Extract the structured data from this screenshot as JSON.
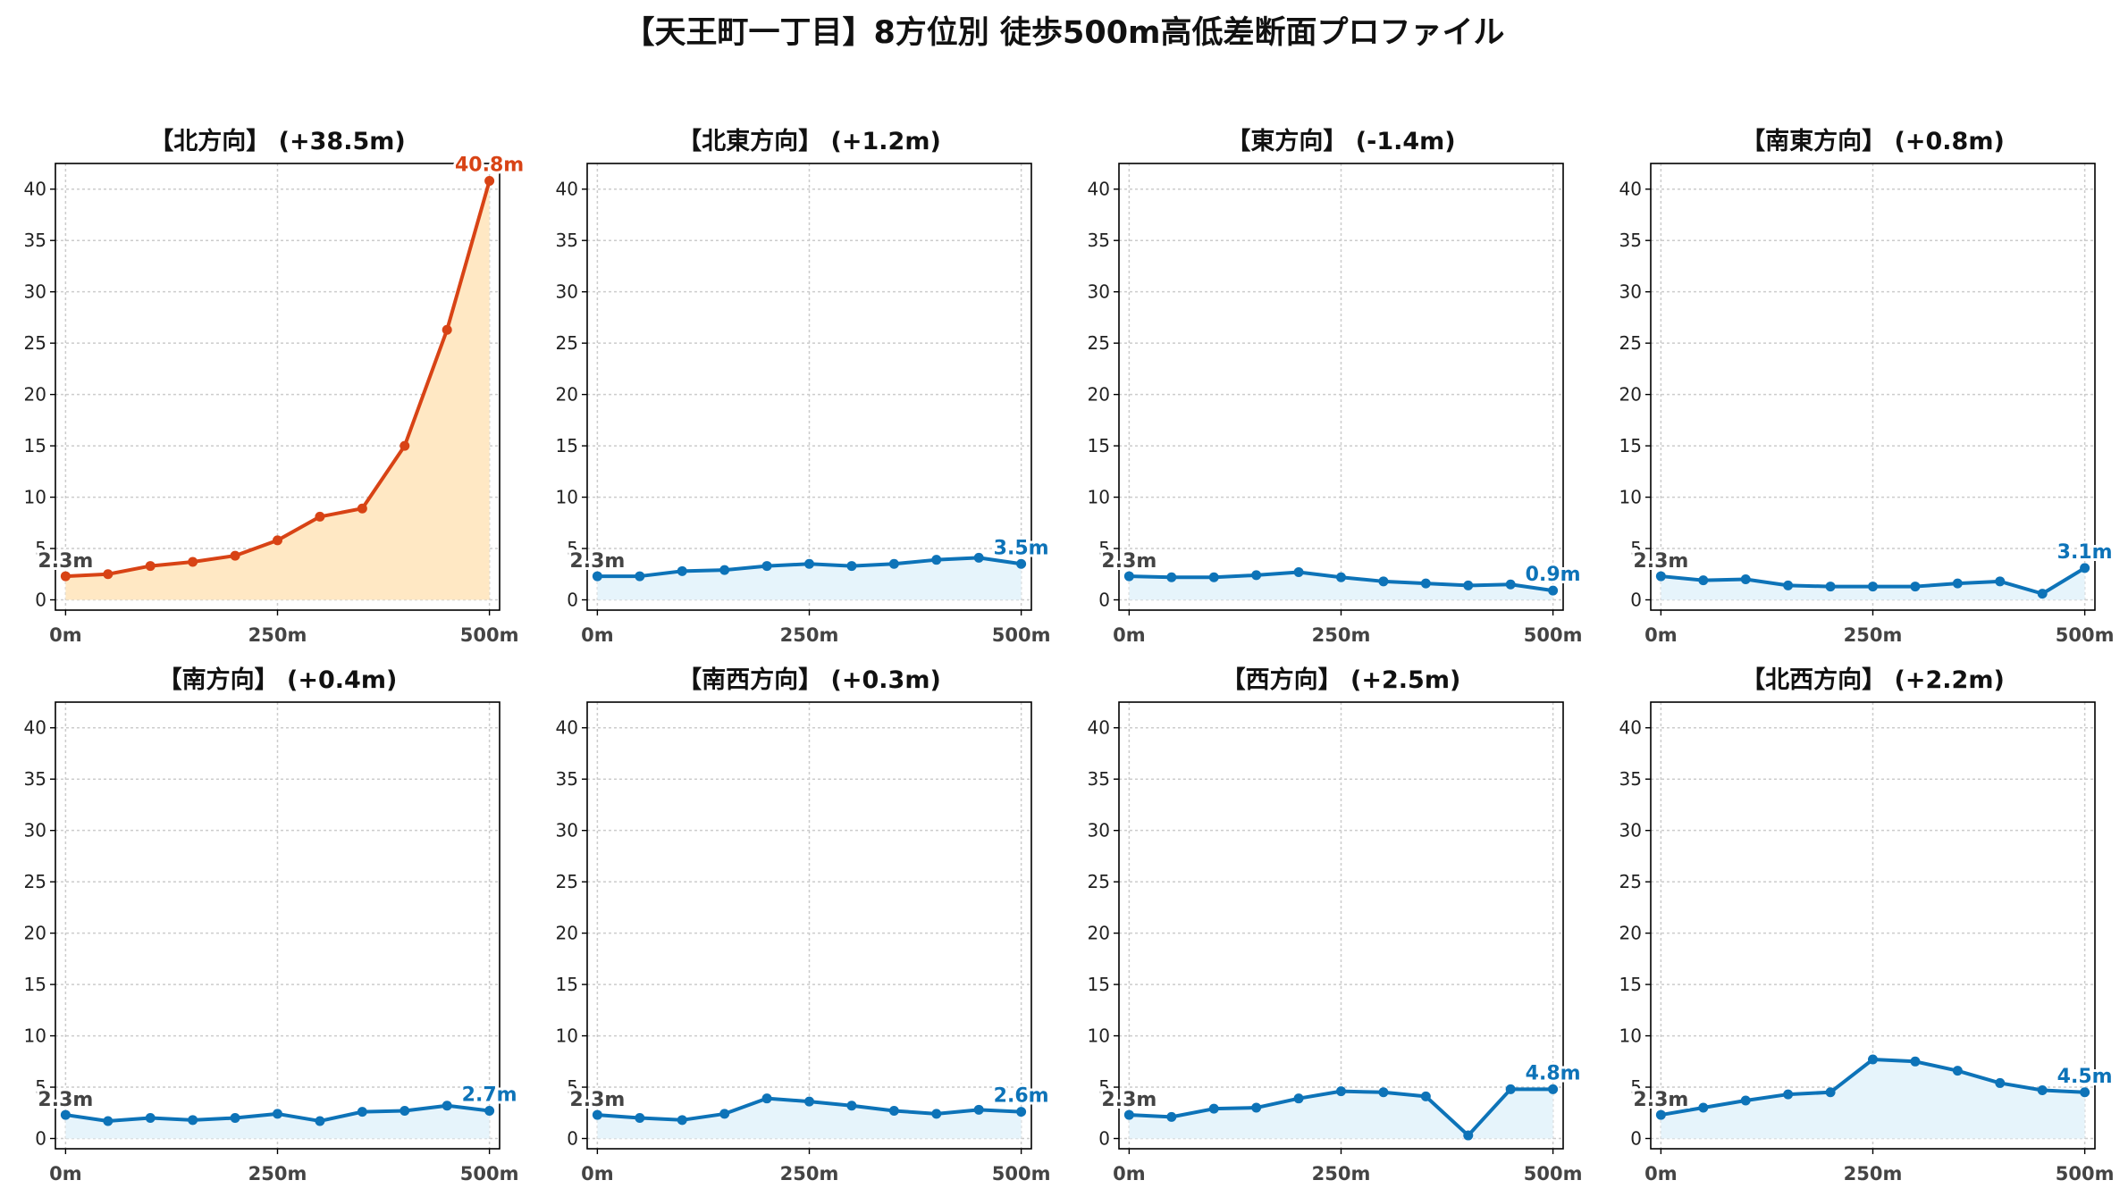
{
  "title": "【天王町一丁目】8方位別 徒歩500m高低差断面プロファイル",
  "colors": {
    "highlight_line": "#d84315",
    "highlight_fill": "#ffe8c4",
    "normal_line": "#0d73b8",
    "normal_fill": "#e6f4fb",
    "grid": "#cccccc"
  },
  "chart_data": [
    {
      "type": "area",
      "title": "【北方向】 (+38.5m)",
      "style": "highlight",
      "x": [
        0,
        50,
        100,
        150,
        200,
        250,
        300,
        350,
        400,
        450,
        500
      ],
      "values": [
        2.3,
        2.5,
        3.3,
        3.7,
        4.3,
        5.8,
        8.1,
        8.9,
        15.0,
        26.3,
        40.8
      ],
      "start_label": "2.3m",
      "end_label": "40.8m",
      "xticks": [
        "0m",
        "250m",
        "500m"
      ],
      "yticks": [
        "0",
        "5",
        "10",
        "15",
        "20",
        "25",
        "30",
        "35",
        "40"
      ],
      "ylim": [
        -1,
        42.5
      ],
      "xlim": [
        -12,
        512
      ],
      "grid": true
    },
    {
      "type": "area",
      "title": "【北東方向】 (+1.2m)",
      "style": "normal",
      "x": [
        0,
        50,
        100,
        150,
        200,
        250,
        300,
        350,
        400,
        450,
        500
      ],
      "values": [
        2.3,
        2.3,
        2.8,
        2.9,
        3.3,
        3.5,
        3.3,
        3.5,
        3.9,
        4.1,
        3.5
      ],
      "start_label": "2.3m",
      "end_label": "3.5m",
      "xticks": [
        "0m",
        "250m",
        "500m"
      ],
      "yticks": [
        "0",
        "5",
        "10",
        "15",
        "20",
        "25",
        "30",
        "35",
        "40"
      ],
      "ylim": [
        -1,
        42.5
      ],
      "xlim": [
        -12,
        512
      ],
      "grid": true
    },
    {
      "type": "area",
      "title": "【東方向】 (-1.4m)",
      "style": "normal",
      "x": [
        0,
        50,
        100,
        150,
        200,
        250,
        300,
        350,
        400,
        450,
        500
      ],
      "values": [
        2.3,
        2.2,
        2.2,
        2.4,
        2.7,
        2.2,
        1.8,
        1.6,
        1.4,
        1.5,
        0.9
      ],
      "start_label": "2.3m",
      "end_label": "0.9m",
      "xticks": [
        "0m",
        "250m",
        "500m"
      ],
      "yticks": [
        "0",
        "5",
        "10",
        "15",
        "20",
        "25",
        "30",
        "35",
        "40"
      ],
      "ylim": [
        -1,
        42.5
      ],
      "xlim": [
        -12,
        512
      ],
      "grid": true
    },
    {
      "type": "area",
      "title": "【南東方向】 (+0.8m)",
      "style": "normal",
      "x": [
        0,
        50,
        100,
        150,
        200,
        250,
        300,
        350,
        400,
        450,
        500
      ],
      "values": [
        2.3,
        1.9,
        2.0,
        1.4,
        1.3,
        1.3,
        1.3,
        1.6,
        1.8,
        0.6,
        3.1
      ],
      "start_label": "2.3m",
      "end_label": "3.1m",
      "xticks": [
        "0m",
        "250m",
        "500m"
      ],
      "yticks": [
        "0",
        "5",
        "10",
        "15",
        "20",
        "25",
        "30",
        "35",
        "40"
      ],
      "ylim": [
        -1,
        42.5
      ],
      "xlim": [
        -12,
        512
      ],
      "grid": true
    },
    {
      "type": "area",
      "title": "【南方向】 (+0.4m)",
      "style": "normal",
      "x": [
        0,
        50,
        100,
        150,
        200,
        250,
        300,
        350,
        400,
        450,
        500
      ],
      "values": [
        2.3,
        1.7,
        2.0,
        1.8,
        2.0,
        2.4,
        1.7,
        2.6,
        2.7,
        3.2,
        2.7
      ],
      "start_label": "2.3m",
      "end_label": "2.7m",
      "xticks": [
        "0m",
        "250m",
        "500m"
      ],
      "yticks": [
        "0",
        "5",
        "10",
        "15",
        "20",
        "25",
        "30",
        "35",
        "40"
      ],
      "ylim": [
        -1,
        42.5
      ],
      "xlim": [
        -12,
        512
      ],
      "grid": true
    },
    {
      "type": "area",
      "title": "【南西方向】 (+0.3m)",
      "style": "normal",
      "x": [
        0,
        50,
        100,
        150,
        200,
        250,
        300,
        350,
        400,
        450,
        500
      ],
      "values": [
        2.3,
        2.0,
        1.8,
        2.4,
        3.9,
        3.6,
        3.2,
        2.7,
        2.4,
        2.8,
        2.6
      ],
      "start_label": "2.3m",
      "end_label": "2.6m",
      "xticks": [
        "0m",
        "250m",
        "500m"
      ],
      "yticks": [
        "0",
        "5",
        "10",
        "15",
        "20",
        "25",
        "30",
        "35",
        "40"
      ],
      "ylim": [
        -1,
        42.5
      ],
      "xlim": [
        -12,
        512
      ],
      "grid": true
    },
    {
      "type": "area",
      "title": "【西方向】 (+2.5m)",
      "style": "normal",
      "x": [
        0,
        50,
        100,
        150,
        200,
        250,
        300,
        350,
        400,
        450,
        500
      ],
      "values": [
        2.3,
        2.1,
        2.9,
        3.0,
        3.9,
        4.6,
        4.5,
        4.1,
        0.3,
        4.8,
        4.8
      ],
      "start_label": "2.3m",
      "end_label": "4.8m",
      "xticks": [
        "0m",
        "250m",
        "500m"
      ],
      "yticks": [
        "0",
        "5",
        "10",
        "15",
        "20",
        "25",
        "30",
        "35",
        "40"
      ],
      "ylim": [
        -1,
        42.5
      ],
      "xlim": [
        -12,
        512
      ],
      "grid": true
    },
    {
      "type": "area",
      "title": "【北西方向】 (+2.2m)",
      "style": "normal",
      "x": [
        0,
        50,
        100,
        150,
        200,
        250,
        300,
        350,
        400,
        450,
        500
      ],
      "values": [
        2.3,
        3.0,
        3.7,
        4.3,
        4.5,
        7.7,
        7.5,
        6.6,
        5.4,
        4.7,
        4.5
      ],
      "start_label": "2.3m",
      "end_label": "4.5m",
      "xticks": [
        "0m",
        "250m",
        "500m"
      ],
      "yticks": [
        "0",
        "5",
        "10",
        "15",
        "20",
        "25",
        "30",
        "35",
        "40"
      ],
      "ylim": [
        -1,
        42.5
      ],
      "xlim": [
        -12,
        512
      ],
      "grid": true
    }
  ]
}
